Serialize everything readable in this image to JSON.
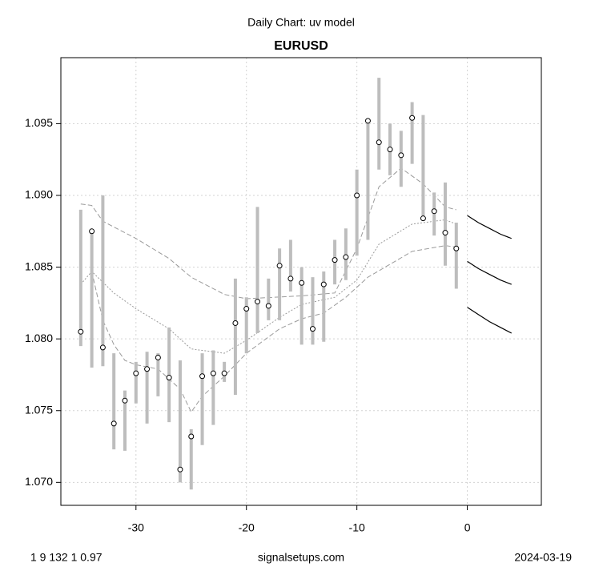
{
  "chart_data": {
    "type": "range",
    "title": "Daily Chart: uv model",
    "subtitle": "EURUSD",
    "footer_left": "1 9 132 1 0.97",
    "footer_center": "signalsetups.com",
    "footer_right": "2024-03-19",
    "x": [
      -35,
      -34,
      -33,
      -32,
      -31,
      -30,
      -29,
      -28,
      -27,
      -26,
      -25,
      -24,
      -23,
      -22,
      -21,
      -20,
      -19,
      -18,
      -17,
      -16,
      -15,
      -14,
      -13,
      -12,
      -11,
      -10,
      -9,
      -8,
      -7,
      -6,
      -5,
      -4,
      -3,
      -2,
      -1
    ],
    "close": [
      1.0805,
      1.0875,
      1.0794,
      1.0741,
      1.0757,
      1.0776,
      1.0779,
      1.0787,
      1.0773,
      1.0709,
      1.0732,
      1.0774,
      1.0776,
      1.0776,
      1.0811,
      1.0821,
      1.0826,
      1.0823,
      1.0851,
      1.0842,
      1.0839,
      1.0807,
      1.0838,
      1.0855,
      1.0857,
      1.09,
      1.0952,
      1.0937,
      1.0932,
      1.0928,
      1.0954,
      1.0884,
      1.0889,
      1.0874,
      1.0863
    ],
    "high": [
      1.089,
      1.0876,
      1.09,
      1.079,
      1.0764,
      1.0784,
      1.0791,
      1.079,
      1.0808,
      1.0785,
      1.0737,
      1.079,
      1.0792,
      1.0784,
      1.0842,
      1.0829,
      1.0892,
      1.0842,
      1.0863,
      1.0869,
      1.085,
      1.0843,
      1.0847,
      1.0869,
      1.0877,
      1.0918,
      1.0951,
      1.0982,
      1.095,
      1.0945,
      1.0965,
      1.0956,
      1.0902,
      1.0909,
      1.0881
    ],
    "low": [
      1.0795,
      1.078,
      1.0781,
      1.0723,
      1.0722,
      1.0755,
      1.0741,
      1.076,
      1.0742,
      1.07,
      1.0695,
      1.0726,
      1.074,
      1.077,
      1.0761,
      1.079,
      1.0804,
      1.0813,
      1.0813,
      1.0833,
      1.0796,
      1.0796,
      1.0798,
      1.0838,
      1.0841,
      1.0858,
      1.0869,
      1.0918,
      1.0914,
      1.0906,
      1.0922,
      1.0883,
      1.0872,
      1.0851,
      1.0835
    ],
    "bar_color": "#bdbdbd",
    "band_color": "#9a9a9a",
    "forecast_color": "#000000",
    "bands": [
      {
        "x": [
          -35,
          -34,
          -33,
          -30,
          -27,
          -25,
          -22,
          -20,
          -15,
          -12,
          -10,
          -8,
          -6,
          -4,
          -2,
          -1
        ],
        "values": [
          1.0894,
          1.0893,
          1.0882,
          1.087,
          1.0856,
          1.0843,
          1.0831,
          1.0828,
          1.083,
          1.0832,
          1.0863,
          1.0906,
          1.0919,
          1.0908,
          1.0892,
          1.089
        ],
        "dash": "dashed"
      },
      {
        "x": [
          -35,
          -34,
          -32,
          -30,
          -27,
          -25,
          -22,
          -20,
          -17,
          -15,
          -12,
          -10,
          -8,
          -5,
          -2,
          -1
        ],
        "values": [
          1.0838,
          1.0847,
          1.0832,
          1.0821,
          1.0807,
          1.0793,
          1.079,
          1.0799,
          1.0815,
          1.0824,
          1.0829,
          1.0841,
          1.0866,
          1.088,
          1.0883,
          1.088
        ],
        "dash": "dotted"
      },
      {
        "x": [
          -34,
          -33,
          -32,
          -31,
          -30,
          -28,
          -26,
          -25,
          -24,
          -22,
          -20,
          -17,
          -15,
          -13,
          -11,
          -9,
          -7,
          -5,
          -2,
          -1
        ],
        "values": [
          1.0847,
          1.0813,
          1.0796,
          1.0785,
          1.0782,
          1.0779,
          1.0765,
          1.0749,
          1.076,
          1.0774,
          1.079,
          1.0807,
          1.0814,
          1.0818,
          1.0829,
          1.0843,
          1.0852,
          1.0861,
          1.0865,
          1.0864
        ],
        "dash": "dashed"
      }
    ],
    "forecast": [
      {
        "x": [
          0,
          1,
          2,
          3,
          4
        ],
        "values": [
          1.0886,
          1.0881,
          1.0877,
          1.0873,
          1.087
        ]
      },
      {
        "x": [
          0,
          1,
          2,
          3,
          4
        ],
        "values": [
          1.0854,
          1.0849,
          1.0845,
          1.0841,
          1.0838
        ]
      },
      {
        "x": [
          0,
          1,
          2,
          3,
          4
        ],
        "values": [
          1.0822,
          1.0817,
          1.0812,
          1.0808,
          1.0804
        ]
      }
    ],
    "xlim": [
      -36.8,
      6.7
    ],
    "ylim": [
      1.0684,
      1.0996
    ],
    "xticks": [
      -30,
      -20,
      -10,
      0
    ],
    "yticks": [
      {
        "value": 1.07,
        "label": "1.070"
      },
      1.075,
      {
        "value": 1.08,
        "label": "1.080"
      },
      1.085,
      {
        "value": 1.09,
        "label": "1.090"
      },
      1.095
    ],
    "grid": true
  }
}
